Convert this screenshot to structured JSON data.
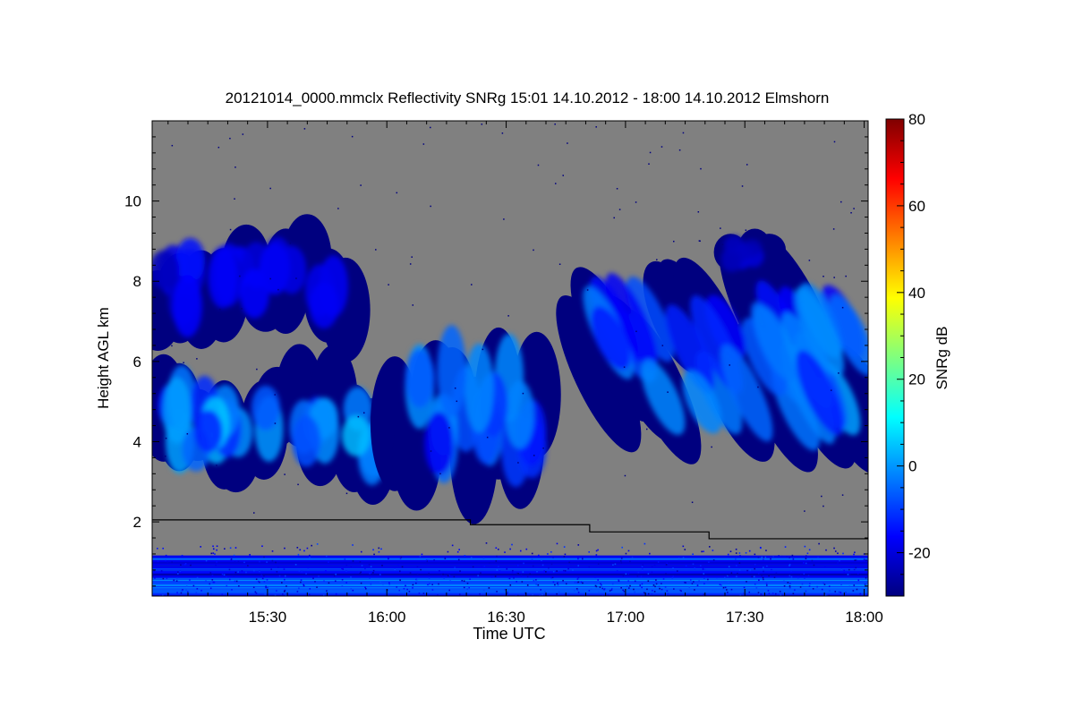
{
  "chart_data": {
    "type": "heatmap",
    "title": "20121014_0000.mmclx Reflectivity SNRg   15:01 14.10.2012 - 18:00 14.10.2012 Elmshorn",
    "xlabel": "Time UTC",
    "ylabel": "Height AGL km",
    "colorbar_label": "SNRg dB",
    "x_range_minutes_utc": [
      901,
      1081
    ],
    "x_ticks": [
      {
        "label": "15:30",
        "minutes": 930
      },
      {
        "label": "16:00",
        "minutes": 960
      },
      {
        "label": "16:30",
        "minutes": 990
      },
      {
        "label": "17:00",
        "minutes": 1020
      },
      {
        "label": "17:30",
        "minutes": 1050
      },
      {
        "label": "18:00",
        "minutes": 1080
      }
    ],
    "ylim": [
      0.15,
      12.0
    ],
    "y_ticks": [
      2,
      4,
      6,
      8,
      10
    ],
    "colorbar_range": [
      -30,
      80
    ],
    "colorbar_ticks": [
      -20,
      0,
      20,
      40,
      60,
      80
    ],
    "colormap": [
      "#00007f",
      "#0000ff",
      "#007fff",
      "#00ffff",
      "#7fff7f",
      "#ffff00",
      "#ff7f00",
      "#ff0000",
      "#7f0000"
    ],
    "background_color": "#808080",
    "grid": false,
    "legend": "colorbar-right",
    "cloud_layers": [
      {
        "name": "upper cloud band",
        "x_minutes": [
          901,
          952
        ],
        "height_km": [
          6.6,
          9.3
        ],
        "snr_db": [
          -28,
          -15
        ]
      },
      {
        "name": "mid-level cloud",
        "x_minutes": [
          901,
          960
        ],
        "height_km": [
          3.0,
          5.8
        ],
        "snr_db": [
          -25,
          5
        ]
      },
      {
        "name": "descending cloud",
        "x_minutes": [
          960,
          1000
        ],
        "height_km": [
          2.8,
          6.8
        ],
        "snr_db": [
          -25,
          0
        ]
      },
      {
        "name": "fall streaks",
        "x_minutes": [
          1010,
          1081
        ],
        "height_km": [
          3.6,
          8.3
        ],
        "snr_db": [
          -25,
          2
        ]
      },
      {
        "name": "high cirrus",
        "x_minutes": [
          1045,
          1057
        ],
        "height_km": [
          8.1,
          9.2
        ],
        "snr_db": [
          -28,
          -20
        ]
      },
      {
        "name": "boundary layer clutter",
        "x_minutes": [
          901,
          1081
        ],
        "height_km": [
          0.15,
          1.5
        ],
        "snr_db": [
          -25,
          5
        ]
      }
    ],
    "boundary_layer_line": {
      "color": "#000000",
      "x_minutes": [
        901,
        981,
        981,
        1011,
        1011,
        1041,
        1041,
        1081
      ],
      "height_km": [
        2.05,
        2.05,
        1.93,
        1.93,
        1.75,
        1.75,
        1.58,
        1.58
      ]
    }
  }
}
